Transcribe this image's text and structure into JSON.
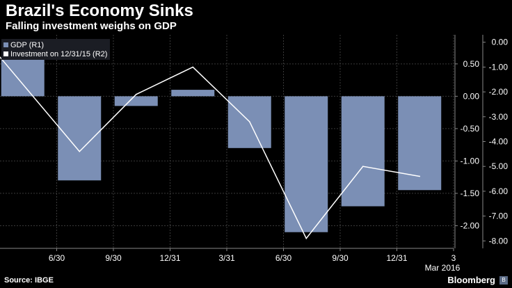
{
  "header": {
    "title": "Brazil's Economy Sinks",
    "subtitle": "Falling investment weighs on GDP"
  },
  "footer": {
    "source": "Source: IBGE",
    "brand": "Bloomberg",
    "brand_icon": "bloomberg-logo-icon"
  },
  "colors": {
    "bar": "#7b8fb5",
    "line": "#ffffff",
    "grid": "#3a3a3a",
    "background": "#000000",
    "legend_bg": "#1b1d24"
  },
  "chart_data": {
    "type": "bar",
    "title": "Brazil's Economy Sinks",
    "subtitle": "Falling investment weighs on GDP",
    "categories": [
      "3/31",
      "6/30",
      "9/30",
      "12/31",
      "3/31",
      "6/30",
      "9/30",
      "12/31"
    ],
    "x_tick_labels": [
      "6/30",
      "9/30",
      "12/31",
      "3/31",
      "6/30",
      "9/30",
      "12/31",
      "3"
    ],
    "x_sub_label": "Mar 2016",
    "legend_position": "top-left",
    "grid": true,
    "series": [
      {
        "name": "GDP (R1)",
        "type": "bar",
        "axis": "right-outer",
        "values": [
          0.6,
          -1.3,
          -0.15,
          0.1,
          -0.8,
          -2.1,
          -1.7,
          -1.45
        ]
      },
      {
        "name": "Investment  on 12/31/15 (R2)",
        "type": "line",
        "axis": "right-inner",
        "values": [
          -0.6,
          -4.4,
          -2.1,
          -1.0,
          -3.2,
          -7.9,
          -5.0,
          -5.4
        ]
      }
    ],
    "y_axes": [
      {
        "id": "R1",
        "ylim": [
          -2.35,
          0.95
        ],
        "ticks": [
          0.5,
          0.0,
          -0.5,
          -1.0,
          -1.5,
          -2.0
        ],
        "tick_labels": [
          "0.50",
          "0.00",
          "-0.50",
          "-1.00",
          "-1.50",
          "-2.00"
        ]
      },
      {
        "id": "R2",
        "ylim": [
          -8.3,
          0.3
        ],
        "ticks": [
          0.0,
          -1.0,
          -2.0,
          -3.0,
          -4.0,
          -5.0,
          -6.0,
          -7.0,
          -8.0
        ],
        "tick_labels": [
          "0.00",
          "-1.00",
          "-2.00",
          "-3.00",
          "-4.00",
          "-5.00",
          "-6.00",
          "-7.00",
          "-8.00"
        ]
      }
    ]
  }
}
